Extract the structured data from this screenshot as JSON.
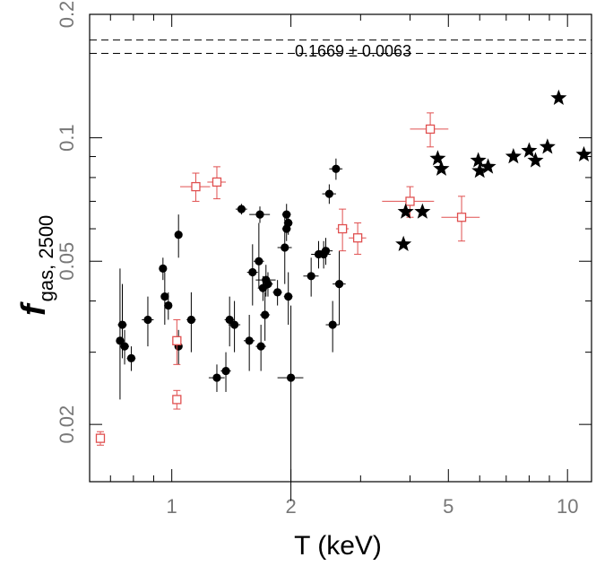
{
  "chart_data": {
    "type": "scatter",
    "title": "",
    "xlabel": "T (keV)",
    "ylabel_main": "f",
    "ylabel_sub": "gas, 2500",
    "xscale": "log",
    "yscale": "log",
    "xlim": [
      0.62,
      11.5
    ],
    "ylim": [
      0.0145,
      0.2
    ],
    "xticks": [
      {
        "value": 1,
        "label": "1"
      },
      {
        "value": 2,
        "label": "2"
      },
      {
        "value": 5,
        "label": "5"
      },
      {
        "value": 10,
        "label": "10"
      }
    ],
    "yticks": [
      {
        "value": 0.02,
        "label": "0.02"
      },
      {
        "value": 0.05,
        "label": "0.05"
      },
      {
        "value": 0.1,
        "label": "0.1"
      },
      {
        "value": 0.2,
        "label": "0.2"
      }
    ],
    "reference_band": {
      "label": "0.1669 ± 0.0063",
      "center": 0.1669,
      "error": 0.0063
    },
    "series": [
      {
        "name": "filled circles",
        "marker": "circle",
        "color": "#000000",
        "points": [
          [
            0.74,
            0.032,
            0.0,
            0.0,
            0.009,
            0.016
          ],
          [
            0.75,
            0.035,
            0.02,
            0.02,
            0.006,
            0.009
          ],
          [
            0.76,
            0.031,
            0.02,
            0.02,
            0.003,
            0.003
          ],
          [
            0.79,
            0.029,
            0.02,
            0.02,
            0.002,
            0.002
          ],
          [
            0.87,
            0.036,
            0.03,
            0.03,
            0.005,
            0.005
          ],
          [
            0.95,
            0.048,
            0.02,
            0.02,
            0.003,
            0.003
          ],
          [
            0.96,
            0.041,
            0.02,
            0.02,
            0.006,
            0.006
          ],
          [
            0.98,
            0.039,
            0.02,
            0.02,
            0.003,
            0.003
          ],
          [
            1.04,
            0.058,
            0.0,
            0.0,
            0.007,
            0.007
          ],
          [
            1.04,
            0.031,
            0.0,
            0.0,
            0.003,
            0.003
          ],
          [
            1.12,
            0.036,
            0.03,
            0.03,
            0.006,
            0.006
          ],
          [
            1.3,
            0.026,
            0.06,
            0.06,
            0.002,
            0.002
          ],
          [
            1.37,
            0.027,
            0.04,
            0.04,
            0.003,
            0.003
          ],
          [
            1.4,
            0.036,
            0.04,
            0.04,
            0.005,
            0.005
          ],
          [
            1.44,
            0.035,
            0.05,
            0.05,
            0.005,
            0.005
          ],
          [
            1.5,
            0.067,
            0.05,
            0.05,
            0.002,
            0.002
          ],
          [
            1.57,
            0.032,
            0.05,
            0.05,
            0.005,
            0.005
          ],
          [
            1.6,
            0.047,
            0.05,
            0.05,
            0.008,
            0.008
          ],
          [
            1.66,
            0.05,
            0.05,
            0.05,
            0.007,
            0.012
          ],
          [
            1.67,
            0.065,
            0.1,
            0.1,
            0.003,
            0.003
          ],
          [
            1.68,
            0.031,
            0.05,
            0.05,
            0.004,
            0.004
          ],
          [
            1.7,
            0.043,
            0.05,
            0.05,
            0.003,
            0.003
          ],
          [
            1.72,
            0.037,
            0.05,
            0.05,
            0.005,
            0.005
          ],
          [
            1.73,
            0.045,
            0.1,
            0.1,
            0.004,
            0.004
          ],
          [
            1.75,
            0.044,
            0.05,
            0.05,
            0.003,
            0.003
          ],
          [
            1.85,
            0.042,
            0.05,
            0.05,
            0.003,
            0.003
          ],
          [
            1.93,
            0.054,
            0.08,
            0.08,
            0.01,
            0.01
          ],
          [
            1.95,
            0.06,
            0.05,
            0.05,
            0.004,
            0.004
          ],
          [
            1.95,
            0.065,
            0.05,
            0.05,
            0.004,
            0.004
          ],
          [
            1.97,
            0.062,
            0.05,
            0.05,
            0.004,
            0.004
          ],
          [
            1.97,
            0.041,
            0.05,
            0.05,
            0.006,
            0.006
          ],
          [
            2.0,
            0.026,
            0.15,
            0.15,
            0.013,
            0.013
          ],
          [
            2.25,
            0.046,
            0.1,
            0.1,
            0.005,
            0.005
          ],
          [
            2.35,
            0.052,
            0.1,
            0.1,
            0.004,
            0.004
          ],
          [
            2.42,
            0.052,
            0.1,
            0.1,
            0.004,
            0.004
          ],
          [
            2.45,
            0.053,
            0.1,
            0.1,
            0.004,
            0.004
          ],
          [
            2.5,
            0.073,
            0.1,
            0.1,
            0.004,
            0.004
          ],
          [
            2.55,
            0.035,
            0.1,
            0.1,
            0.005,
            0.005
          ],
          [
            2.6,
            0.084,
            0.1,
            0.1,
            0.005,
            0.005
          ],
          [
            2.65,
            0.044,
            0.1,
            0.1,
            0.009,
            0.009
          ]
        ]
      },
      {
        "name": "open squares",
        "marker": "square",
        "color": "#e05050",
        "points": [
          [
            0.66,
            0.0185,
            0.0,
            0.0,
            0.0007,
            0.0007
          ],
          [
            1.03,
            0.023,
            0.0,
            0.0,
            0.0012,
            0.0012
          ],
          [
            1.03,
            0.032,
            0.0,
            0.0,
            0.004,
            0.004
          ],
          [
            1.15,
            0.076,
            0.1,
            0.1,
            0.006,
            0.006
          ],
          [
            1.3,
            0.078,
            0.07,
            0.07,
            0.007,
            0.007
          ],
          [
            2.7,
            0.06,
            0.1,
            0.1,
            0.007,
            0.007
          ],
          [
            2.95,
            0.057,
            0.15,
            0.15,
            0.005,
            0.005
          ],
          [
            4.0,
            0.07,
            0.6,
            0.6,
            0.006,
            0.006
          ],
          [
            4.5,
            0.105,
            0.5,
            0.5,
            0.01,
            0.01
          ],
          [
            5.4,
            0.064,
            0.6,
            0.6,
            0.008,
            0.008
          ]
        ]
      },
      {
        "name": "filled stars",
        "marker": "star",
        "color": "#000000",
        "points": [
          [
            3.85,
            0.055,
            0,
            0,
            0,
            0
          ],
          [
            3.9,
            0.066,
            0,
            0,
            0,
            0
          ],
          [
            4.3,
            0.066,
            0,
            0,
            0,
            0
          ],
          [
            4.7,
            0.089,
            0,
            0,
            0,
            0
          ],
          [
            4.8,
            0.084,
            0,
            0,
            0,
            0
          ],
          [
            5.95,
            0.088,
            0,
            0,
            0,
            0
          ],
          [
            6.0,
            0.083,
            0,
            0,
            0,
            0
          ],
          [
            6.3,
            0.085,
            0,
            0,
            0,
            0
          ],
          [
            7.3,
            0.09,
            0,
            0,
            0,
            0
          ],
          [
            8.0,
            0.093,
            0,
            0,
            0,
            0
          ],
          [
            8.3,
            0.088,
            0,
            0,
            0,
            0
          ],
          [
            8.9,
            0.095,
            0,
            0,
            0,
            0
          ],
          [
            9.5,
            0.125,
            0,
            0,
            0,
            0
          ],
          [
            11.0,
            0.091,
            0,
            0,
            0,
            0
          ]
        ]
      }
    ]
  }
}
